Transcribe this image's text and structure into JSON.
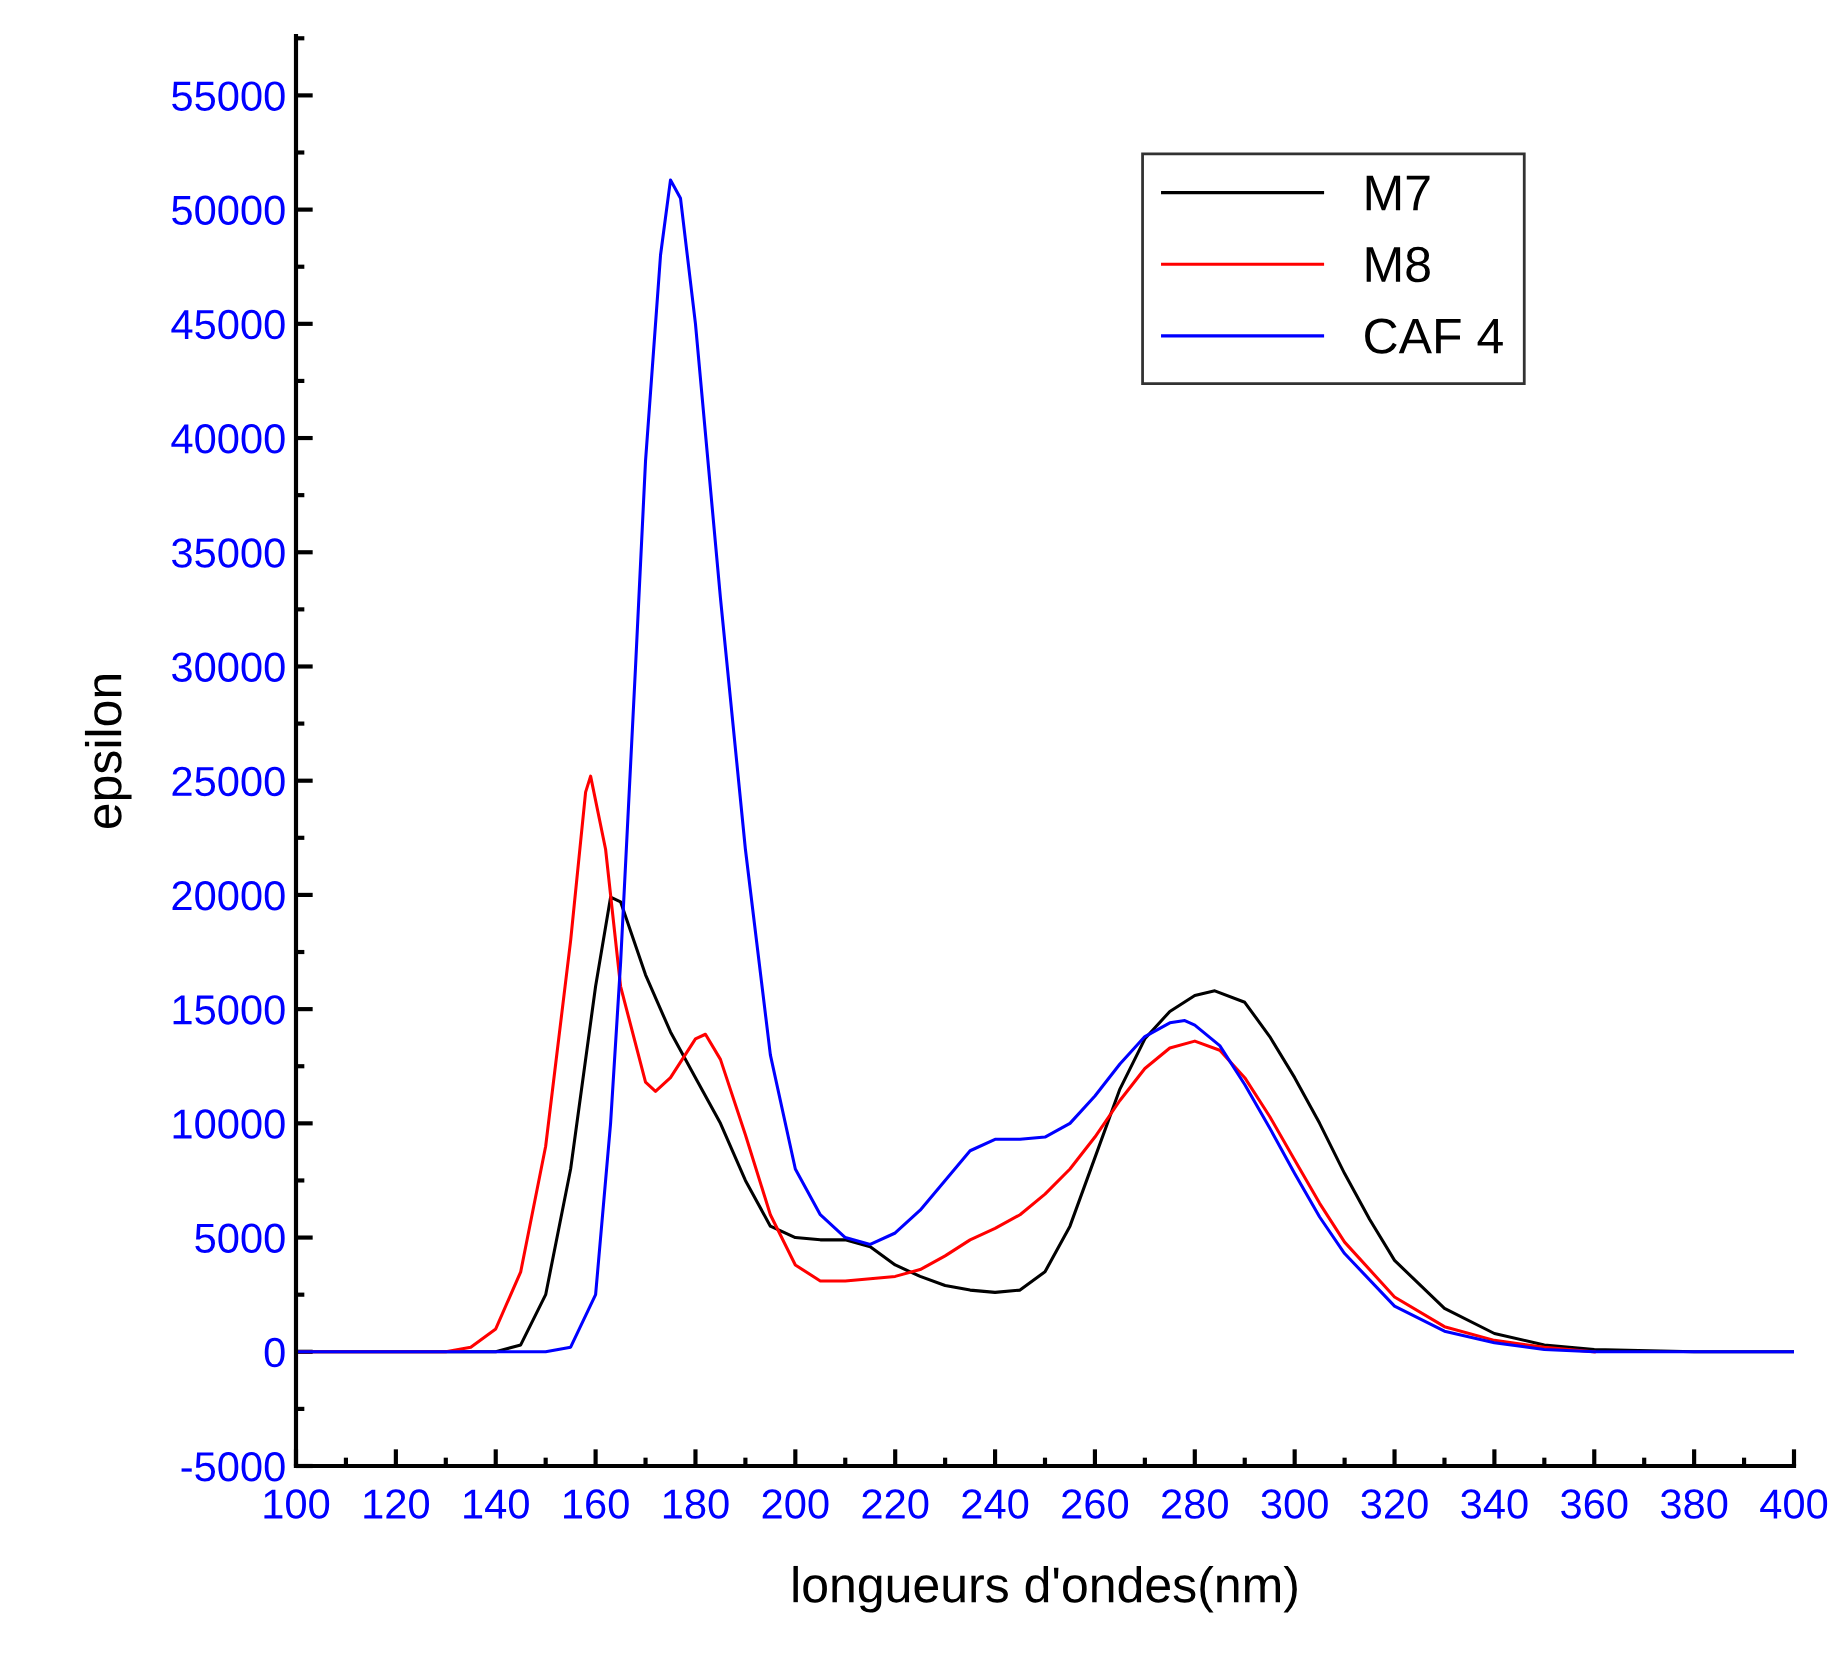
{
  "chart_data": {
    "type": "line",
    "xlabel": "longueurs d'ondes(nm)",
    "ylabel": "epsilon",
    "xlim": [
      100,
      400
    ],
    "xticks": [
      100,
      120,
      140,
      160,
      180,
      200,
      220,
      240,
      260,
      280,
      300,
      320,
      340,
      360,
      380,
      400
    ],
    "ylim": [
      -5000,
      57600
    ],
    "yticks": [
      -5000,
      0,
      5000,
      10000,
      15000,
      20000,
      25000,
      30000,
      35000,
      40000,
      45000,
      50000,
      55000
    ],
    "grid": false,
    "legend": "top right",
    "marker": "none",
    "line_style": "solid",
    "series": [
      {
        "name": "M7",
        "color": "#000000",
        "x": [
          100,
          130,
          135,
          140,
          145,
          150,
          155,
          160,
          163,
          165,
          170,
          175,
          180,
          185,
          190,
          195,
          200,
          205,
          210,
          215,
          220,
          225,
          230,
          235,
          240,
          245,
          250,
          255,
          260,
          265,
          270,
          275,
          280,
          284,
          290,
          295,
          300,
          305,
          310,
          315,
          320,
          330,
          340,
          350,
          360,
          380,
          400
        ],
        "values": [
          0,
          0,
          0,
          0,
          300,
          2500,
          8000,
          16000,
          19900,
          19700,
          16500,
          14000,
          12000,
          10000,
          7500,
          5500,
          5000,
          4900,
          4900,
          4600,
          3800,
          3300,
          2900,
          2700,
          2600,
          2700,
          3500,
          5500,
          8500,
          11500,
          13700,
          14900,
          15600,
          15800,
          15300,
          13800,
          12000,
          10000,
          7800,
          5800,
          4000,
          1900,
          800,
          300,
          100,
          0,
          0
        ]
      },
      {
        "name": "M8",
        "color": "#ff0000",
        "x": [
          100,
          130,
          135,
          140,
          145,
          150,
          155,
          158,
          159,
          162,
          165,
          170,
          172,
          175,
          180,
          182,
          185,
          190,
          195,
          200,
          205,
          210,
          215,
          220,
          225,
          230,
          235,
          240,
          245,
          250,
          255,
          260,
          265,
          270,
          275,
          280,
          285,
          290,
          295,
          300,
          305,
          310,
          320,
          330,
          340,
          350,
          360
        ],
        "values": [
          0,
          0,
          200,
          1000,
          3500,
          9000,
          18000,
          24500,
          25200,
          22000,
          16000,
          11800,
          11400,
          12000,
          13700,
          13900,
          12800,
          9500,
          6000,
          3800,
          3100,
          3100,
          3200,
          3300,
          3600,
          4200,
          4900,
          5400,
          6000,
          6900,
          8000,
          9400,
          11000,
          12400,
          13300,
          13600,
          13200,
          12000,
          10300,
          8400,
          6500,
          4800,
          2400,
          1100,
          500,
          200,
          0
        ]
      },
      {
        "name": "CAF 4",
        "color": "#0000ff",
        "x": [
          100,
          140,
          150,
          155,
          160,
          163,
          165,
          168,
          170,
          173,
          175,
          177,
          180,
          185,
          190,
          195,
          200,
          205,
          210,
          215,
          220,
          225,
          230,
          235,
          240,
          245,
          250,
          255,
          260,
          265,
          270,
          275,
          278,
          280,
          285,
          290,
          295,
          300,
          305,
          310,
          320,
          330,
          340,
          350,
          360,
          380,
          400
        ],
        "values": [
          0,
          0,
          0,
          200,
          2500,
          10000,
          17000,
          30000,
          39000,
          48000,
          51300,
          50500,
          45000,
          33000,
          22000,
          13000,
          8000,
          6000,
          5000,
          4700,
          5200,
          6200,
          7500,
          8800,
          9300,
          9300,
          9400,
          10000,
          11200,
          12600,
          13800,
          14400,
          14500,
          14300,
          13400,
          11700,
          9800,
          7800,
          5900,
          4300,
          2000,
          900,
          400,
          100,
          0,
          0,
          0
        ]
      }
    ]
  }
}
